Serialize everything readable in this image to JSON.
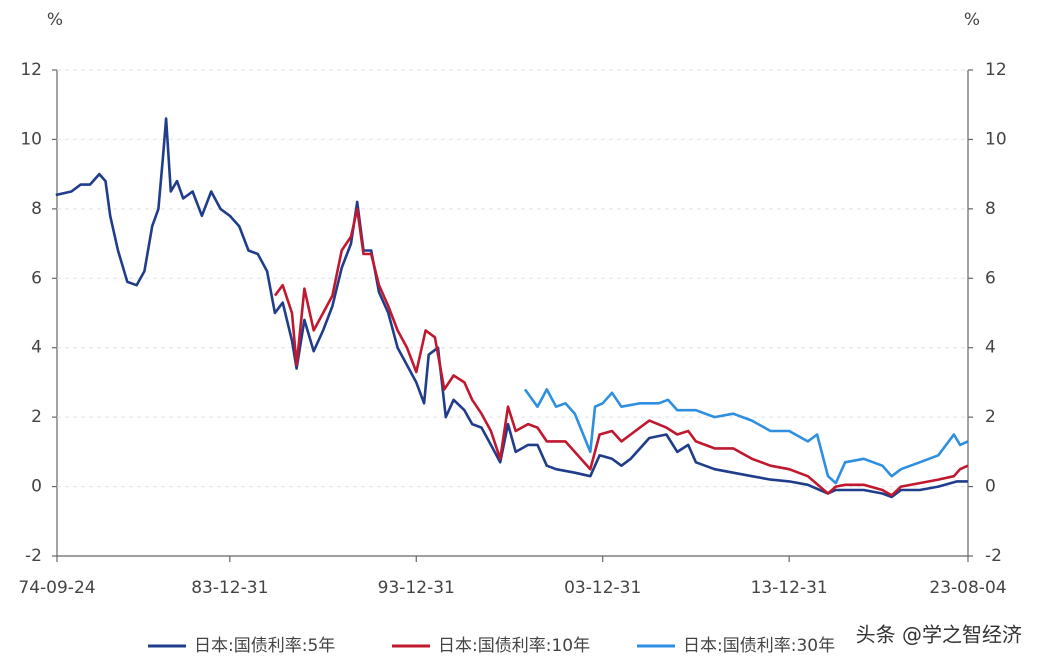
{
  "chart_data": {
    "type": "line",
    "y_label": "%",
    "y2_label": "%",
    "xlim": [
      "1974-09-24",
      "2023-08-04"
    ],
    "xticks": [
      {
        "value": "1974-09-24",
        "label": "74-09-24"
      },
      {
        "value": "1983-12-31",
        "label": "83-12-31"
      },
      {
        "value": "1993-12-31",
        "label": "93-12-31"
      },
      {
        "value": "2003-12-31",
        "label": "03-12-31"
      },
      {
        "value": "2013-12-31",
        "label": "13-12-31"
      },
      {
        "value": "2023-08-04",
        "label": "23-08-04"
      }
    ],
    "ylim": [
      -2,
      12
    ],
    "yticks": [
      -2,
      0,
      2,
      4,
      6,
      8,
      10,
      12
    ],
    "y2lim": [
      -2,
      12
    ],
    "y2ticks": [
      -2,
      0,
      2,
      4,
      6,
      8,
      10,
      12
    ],
    "grid": true,
    "watermark": "头条 @学之智经济",
    "series": [
      {
        "name": "日本:国债利率:5年",
        "color": "#1f3d8a",
        "x": [
          "1974-09",
          "1975-07",
          "1976-01",
          "1976-07",
          "1977-01",
          "1977-05",
          "1977-08",
          "1978-01",
          "1978-07",
          "1979-01",
          "1979-06",
          "1979-11",
          "1980-03",
          "1980-06",
          "1980-08",
          "1980-11",
          "1981-03",
          "1981-07",
          "1982-01",
          "1982-07",
          "1983-01",
          "1983-07",
          "1984-01",
          "1984-07",
          "1985-01",
          "1985-07",
          "1986-01",
          "1986-06",
          "1986-11",
          "1987-05",
          "1987-08",
          "1988-01",
          "1988-07",
          "1989-01",
          "1989-07",
          "1990-01",
          "1990-07",
          "1990-11",
          "1991-03",
          "1991-08",
          "1992-01",
          "1992-07",
          "1993-01",
          "1993-07",
          "1994-01",
          "1994-06",
          "1994-09",
          "1995-03",
          "1995-08",
          "1996-01",
          "1996-08",
          "1997-01",
          "1997-07",
          "1998-01",
          "1998-07",
          "1998-12",
          "1999-05",
          "2000-01",
          "2000-07",
          "2001-01",
          "2001-07",
          "2002-07",
          "2003-05",
          "2003-11",
          "2004-07",
          "2005-01",
          "2005-07",
          "2006-07",
          "2007-06",
          "2008-01",
          "2008-08",
          "2009-01",
          "2010-01",
          "2011-01",
          "2012-01",
          "2013-01",
          "2014-01",
          "2015-01",
          "2016-02",
          "2016-07",
          "2017-01",
          "2018-01",
          "2019-01",
          "2019-07",
          "2020-01",
          "2021-01",
          "2022-01",
          "2023-01",
          "2023-08"
        ],
        "values": [
          8.4,
          8.5,
          8.7,
          8.7,
          9.0,
          8.8,
          7.8,
          6.8,
          5.9,
          5.8,
          6.2,
          7.5,
          8.0,
          9.5,
          10.6,
          8.5,
          8.8,
          8.3,
          8.5,
          7.8,
          8.5,
          8.0,
          7.8,
          7.5,
          6.8,
          6.7,
          6.2,
          5.0,
          5.3,
          4.2,
          3.4,
          4.8,
          3.9,
          4.5,
          5.2,
          6.3,
          7.0,
          8.2,
          6.8,
          6.8,
          5.6,
          5.0,
          4.0,
          3.5,
          3.0,
          2.4,
          3.8,
          4.0,
          2.0,
          2.5,
          2.2,
          1.8,
          1.7,
          1.2,
          0.7,
          1.8,
          1.0,
          1.2,
          1.2,
          0.6,
          0.5,
          0.4,
          0.3,
          0.9,
          0.8,
          0.6,
          0.8,
          1.4,
          1.5,
          1.0,
          1.2,
          0.7,
          0.5,
          0.4,
          0.3,
          0.2,
          0.15,
          0.05,
          -0.2,
          -0.1,
          -0.1,
          -0.1,
          -0.2,
          -0.3,
          -0.1,
          -0.1,
          0.0,
          0.15,
          0.15
        ]
      },
      {
        "name": "日本:国债利率:10年",
        "color": "#c0182e",
        "x": [
          "1986-06",
          "1986-11",
          "1987-05",
          "1987-08",
          "1988-01",
          "1988-07",
          "1989-01",
          "1989-07",
          "1990-01",
          "1990-07",
          "1990-11",
          "1991-03",
          "1991-08",
          "1992-01",
          "1992-07",
          "1993-01",
          "1993-07",
          "1994-01",
          "1994-07",
          "1995-01",
          "1995-07",
          "1996-01",
          "1996-08",
          "1997-01",
          "1997-07",
          "1998-01",
          "1998-07",
          "1998-12",
          "1999-05",
          "2000-01",
          "2000-07",
          "2001-01",
          "2002-01",
          "2003-05",
          "2003-11",
          "2004-07",
          "2005-01",
          "2005-07",
          "2006-07",
          "2007-06",
          "2008-01",
          "2008-08",
          "2009-01",
          "2010-01",
          "2011-01",
          "2012-01",
          "2013-01",
          "2014-01",
          "2015-01",
          "2016-02",
          "2016-07",
          "2017-01",
          "2018-01",
          "2019-01",
          "2019-07",
          "2020-01",
          "2021-01",
          "2022-01",
          "2022-11",
          "2023-03",
          "2023-08"
        ],
        "values": [
          5.5,
          5.8,
          5.0,
          3.5,
          5.7,
          4.5,
          5.0,
          5.5,
          6.8,
          7.2,
          8.0,
          6.7,
          6.7,
          5.8,
          5.2,
          4.5,
          4.0,
          3.3,
          4.5,
          4.3,
          2.8,
          3.2,
          3.0,
          2.5,
          2.1,
          1.6,
          0.8,
          2.3,
          1.6,
          1.8,
          1.7,
          1.3,
          1.3,
          0.5,
          1.5,
          1.6,
          1.3,
          1.5,
          1.9,
          1.7,
          1.5,
          1.6,
          1.3,
          1.1,
          1.1,
          0.8,
          0.6,
          0.5,
          0.3,
          -0.2,
          0.0,
          0.05,
          0.05,
          -0.1,
          -0.25,
          0.0,
          0.1,
          0.2,
          0.3,
          0.5,
          0.6
        ]
      },
      {
        "name": "日本:国债利率:30年",
        "color": "#2e8fe0",
        "x": [
          "1999-11",
          "2000-07",
          "2001-01",
          "2001-07",
          "2002-01",
          "2002-07",
          "2003-05",
          "2003-08",
          "2004-01",
          "2004-07",
          "2005-01",
          "2006-01",
          "2007-01",
          "2007-07",
          "2008-01",
          "2009-01",
          "2010-01",
          "2011-01",
          "2012-01",
          "2013-01",
          "2014-01",
          "2015-01",
          "2015-07",
          "2016-02",
          "2016-07",
          "2017-01",
          "2018-01",
          "2019-01",
          "2019-07",
          "2020-01",
          "2021-01",
          "2022-01",
          "2022-11",
          "2023-03",
          "2023-08"
        ],
        "values": [
          2.8,
          2.3,
          2.8,
          2.3,
          2.4,
          2.1,
          1.0,
          2.3,
          2.4,
          2.7,
          2.3,
          2.4,
          2.4,
          2.5,
          2.2,
          2.2,
          2.0,
          2.1,
          1.9,
          1.6,
          1.6,
          1.3,
          1.5,
          0.3,
          0.1,
          0.7,
          0.8,
          0.6,
          0.3,
          0.5,
          0.7,
          0.9,
          1.5,
          1.2,
          1.3
        ]
      }
    ]
  }
}
